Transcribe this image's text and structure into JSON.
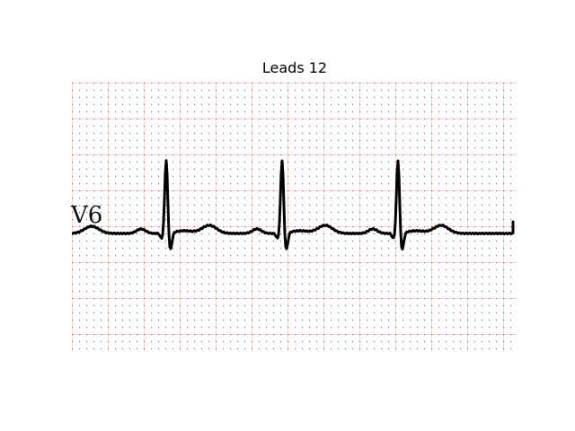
{
  "figure": {
    "title": "Leads 12",
    "lead_label": "V6"
  },
  "colors": {
    "background": "#ffffff",
    "grid_dots": "#c0392b",
    "grid_lines": "#f2b6ad",
    "trace": "#000000"
  }
}
